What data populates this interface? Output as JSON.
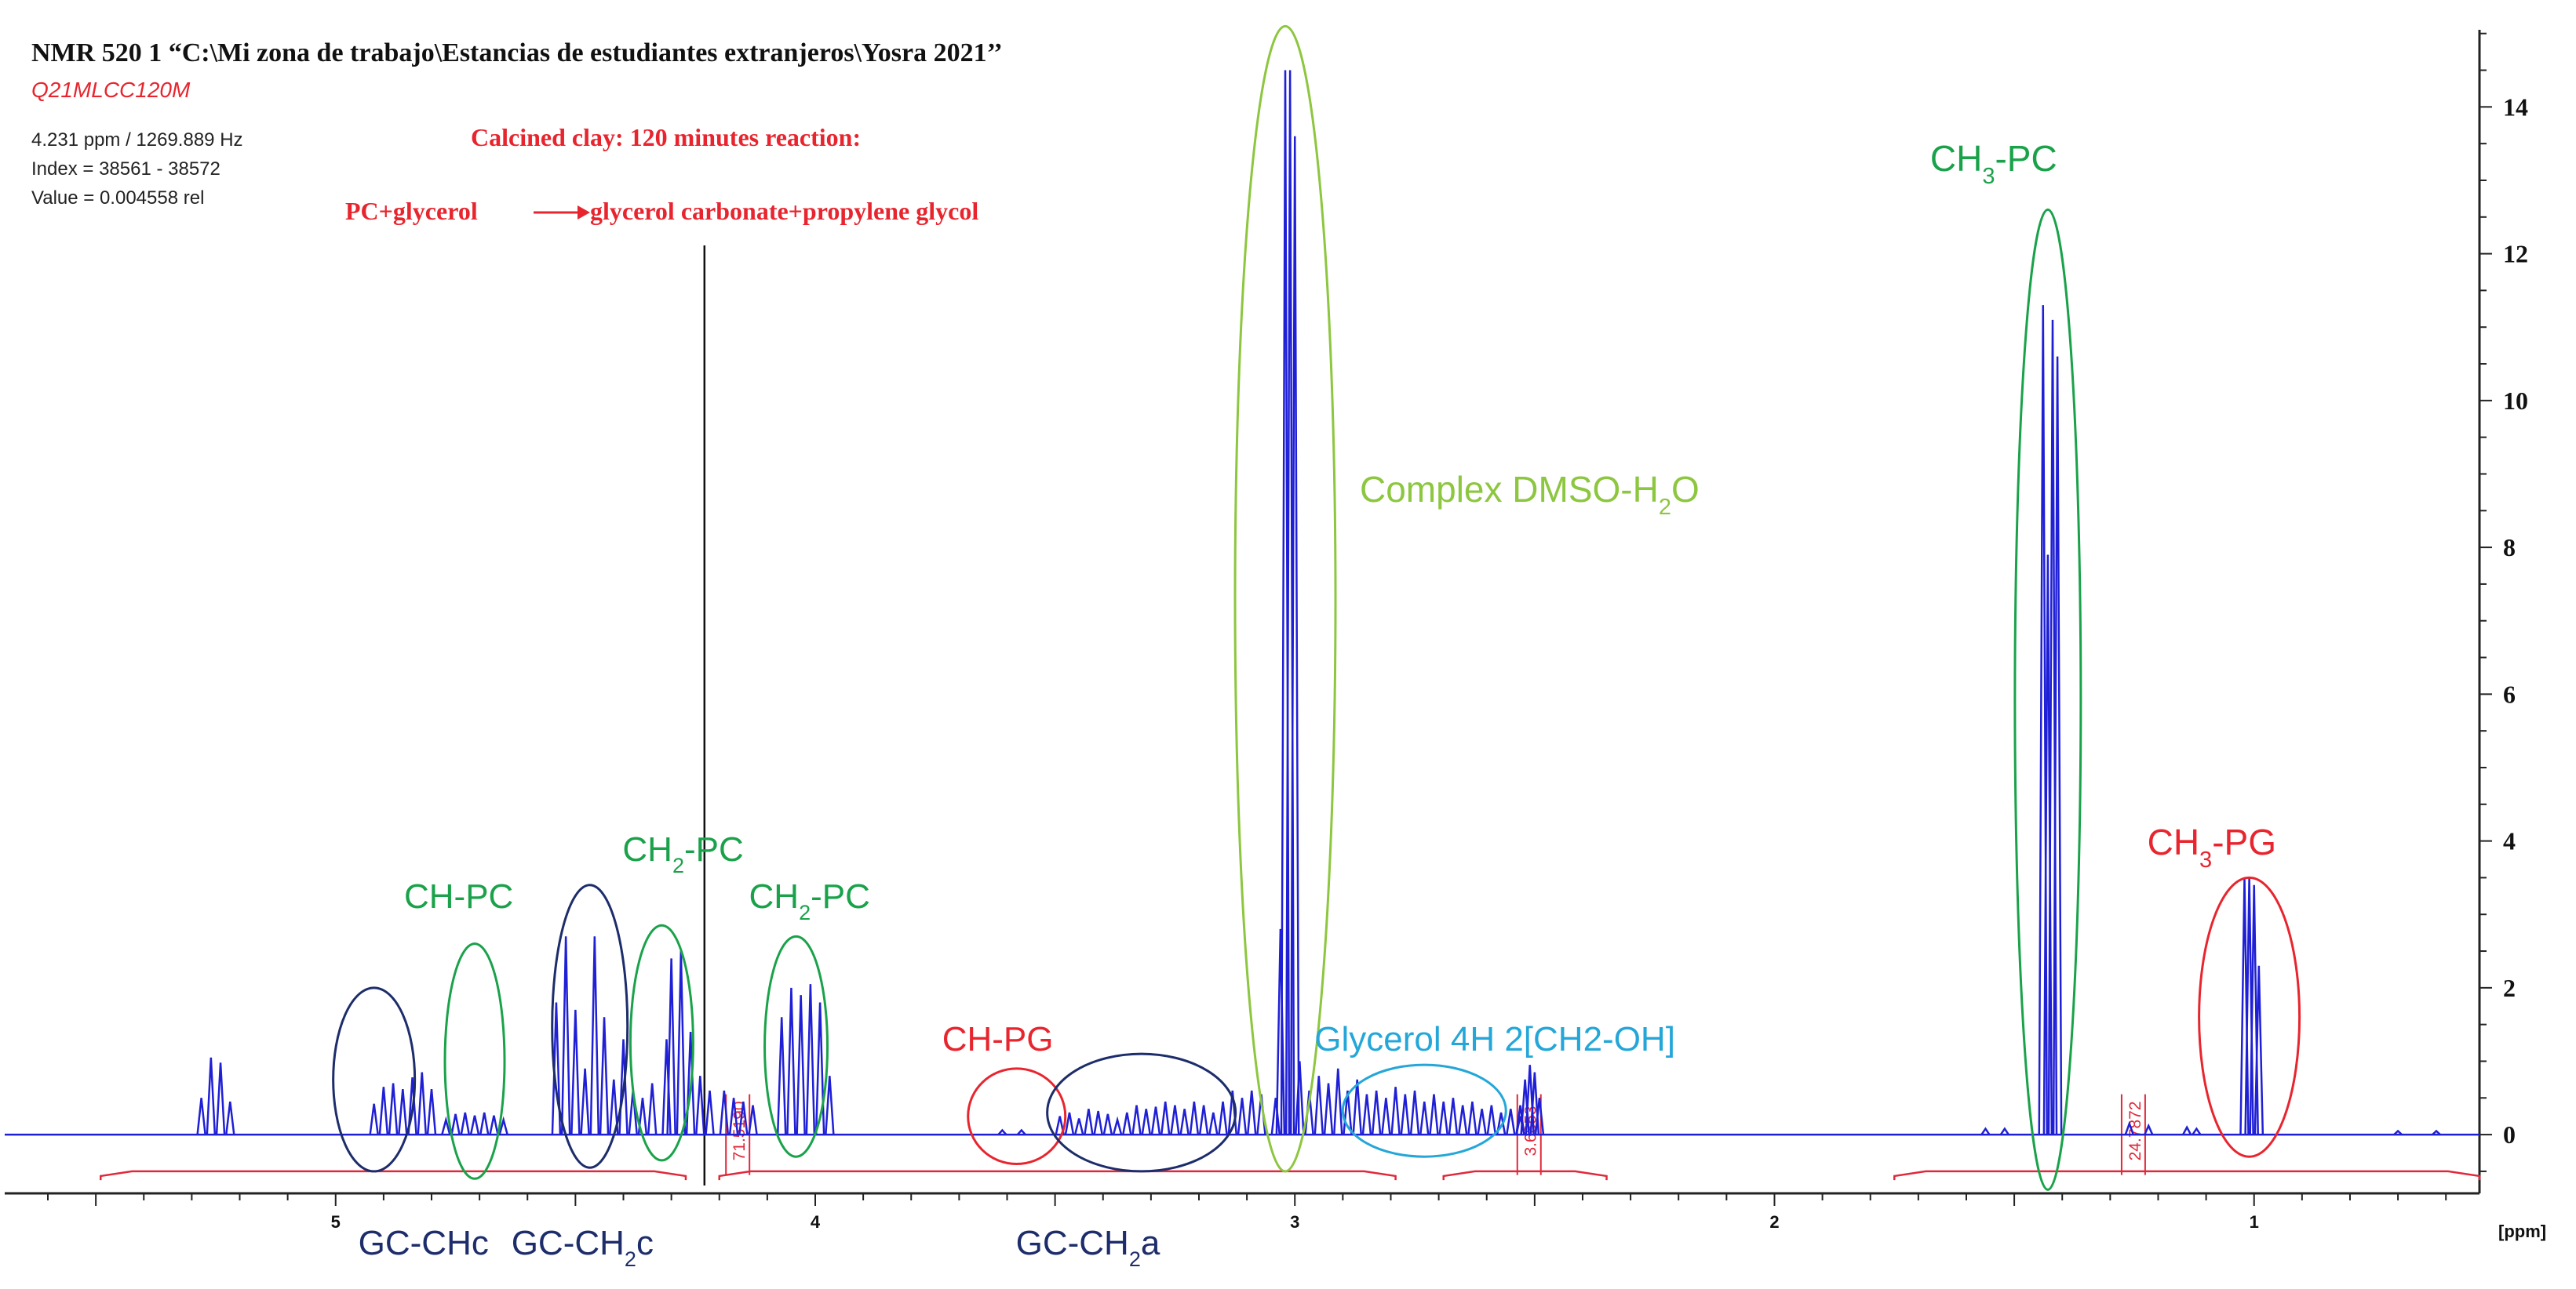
{
  "header": {
    "title": "NMR 520 1 “C:\\Mi zona de trabajo\\Estancias de estudiantes extranjeros\\Yosra 2021’’",
    "sample": "Q21MLCC120M",
    "cursor_readout": "4.231 ppm / 1269.889 Hz",
    "index_readout": "Index = 38561 - 38572",
    "value_readout": "Value = 0.004558   rel"
  },
  "reaction": {
    "condition": "Calcined clay: 120 minutes reaction:",
    "left_side": "PC+glycerol",
    "right_side": "glycerol carbonate+propylene glycol"
  },
  "colors": {
    "spectrum": "#1f1fd6",
    "integral": "#e0283a",
    "pc_green": "#1aa24a",
    "pg_red": "#e8252e",
    "gc_navy": "#1d2d6b",
    "dmso_green": "#8dc63f",
    "glycerol_blue": "#24a7d8"
  },
  "chart_data": {
    "type": "line",
    "x_axis": {
      "unit_label": "[ppm]",
      "reversed": true,
      "range": [
        5.69,
        0.53
      ],
      "major_ticks": [
        5,
        4,
        3,
        2,
        1
      ],
      "tick_labels": [
        "5",
        "4",
        "3",
        "2",
        "1"
      ]
    },
    "y_axis": {
      "position": "right",
      "range": [
        -0.8,
        15.2
      ],
      "ticks": [
        0,
        2,
        4,
        6,
        8,
        10,
        12,
        14
      ],
      "tick_labels": [
        "0",
        "2",
        "4",
        "6",
        "8",
        "10",
        "12",
        "14"
      ]
    },
    "cursor_line_ppm": 4.231,
    "series": [
      {
        "type": "spectrum",
        "peaks": [
          {
            "x": 5.28,
            "y": 0.5
          },
          {
            "x": 5.26,
            "y": 1.05
          },
          {
            "x": 5.24,
            "y": 0.98
          },
          {
            "x": 5.22,
            "y": 0.45
          },
          {
            "x": 4.92,
            "y": 0.42
          },
          {
            "x": 4.9,
            "y": 0.65
          },
          {
            "x": 4.88,
            "y": 0.7
          },
          {
            "x": 4.86,
            "y": 0.62
          },
          {
            "x": 4.84,
            "y": 0.78
          },
          {
            "x": 4.82,
            "y": 0.85
          },
          {
            "x": 4.8,
            "y": 0.62
          },
          {
            "x": 4.77,
            "y": 0.2
          },
          {
            "x": 4.75,
            "y": 0.28
          },
          {
            "x": 4.73,
            "y": 0.3
          },
          {
            "x": 4.71,
            "y": 0.26
          },
          {
            "x": 4.69,
            "y": 0.3
          },
          {
            "x": 4.67,
            "y": 0.26
          },
          {
            "x": 4.65,
            "y": 0.2
          },
          {
            "x": 4.54,
            "y": 1.8
          },
          {
            "x": 4.52,
            "y": 2.7
          },
          {
            "x": 4.5,
            "y": 1.7
          },
          {
            "x": 4.48,
            "y": 0.9
          },
          {
            "x": 4.46,
            "y": 2.7
          },
          {
            "x": 4.44,
            "y": 1.6
          },
          {
            "x": 4.42,
            "y": 0.75
          },
          {
            "x": 4.4,
            "y": 1.3
          },
          {
            "x": 4.38,
            "y": 0.6
          },
          {
            "x": 4.36,
            "y": 0.5
          },
          {
            "x": 4.34,
            "y": 0.7
          },
          {
            "x": 4.31,
            "y": 1.3
          },
          {
            "x": 4.3,
            "y": 2.4
          },
          {
            "x": 4.28,
            "y": 2.5
          },
          {
            "x": 4.26,
            "y": 1.4
          },
          {
            "x": 4.24,
            "y": 0.8
          },
          {
            "x": 4.22,
            "y": 0.6
          },
          {
            "x": 4.19,
            "y": 0.6
          },
          {
            "x": 4.17,
            "y": 0.5
          },
          {
            "x": 4.15,
            "y": 0.45
          },
          {
            "x": 4.13,
            "y": 0.4
          },
          {
            "x": 4.07,
            "y": 1.6
          },
          {
            "x": 4.05,
            "y": 2.0
          },
          {
            "x": 4.03,
            "y": 1.9
          },
          {
            "x": 4.01,
            "y": 2.05
          },
          {
            "x": 3.99,
            "y": 1.8
          },
          {
            "x": 3.97,
            "y": 0.8
          },
          {
            "x": 3.61,
            "y": 0.06
          },
          {
            "x": 3.57,
            "y": 0.06
          },
          {
            "x": 3.49,
            "y": 0.25
          },
          {
            "x": 3.47,
            "y": 0.3
          },
          {
            "x": 3.45,
            "y": 0.22
          },
          {
            "x": 3.43,
            "y": 0.35
          },
          {
            "x": 3.41,
            "y": 0.32
          },
          {
            "x": 3.39,
            "y": 0.28
          },
          {
            "x": 3.37,
            "y": 0.2
          },
          {
            "x": 3.35,
            "y": 0.3
          },
          {
            "x": 3.33,
            "y": 0.4
          },
          {
            "x": 3.31,
            "y": 0.35
          },
          {
            "x": 3.29,
            "y": 0.38
          },
          {
            "x": 3.27,
            "y": 0.45
          },
          {
            "x": 3.25,
            "y": 0.4
          },
          {
            "x": 3.23,
            "y": 0.35
          },
          {
            "x": 3.21,
            "y": 0.45
          },
          {
            "x": 3.19,
            "y": 0.4
          },
          {
            "x": 3.17,
            "y": 0.3
          },
          {
            "x": 3.15,
            "y": 0.45
          },
          {
            "x": 3.13,
            "y": 0.6
          },
          {
            "x": 3.11,
            "y": 0.5
          },
          {
            "x": 3.09,
            "y": 0.6
          },
          {
            "x": 3.07,
            "y": 0.55
          },
          {
            "x": 3.04,
            "y": 0.5
          },
          {
            "x": 3.03,
            "y": 2.8
          },
          {
            "x": 3.02,
            "y": 14.5
          },
          {
            "x": 3.01,
            "y": 14.5
          },
          {
            "x": 3.0,
            "y": 13.6
          },
          {
            "x": 2.99,
            "y": 1.0
          },
          {
            "x": 2.97,
            "y": 0.6
          },
          {
            "x": 2.95,
            "y": 0.8
          },
          {
            "x": 2.93,
            "y": 0.7
          },
          {
            "x": 2.91,
            "y": 0.9
          },
          {
            "x": 2.89,
            "y": 0.6
          },
          {
            "x": 2.87,
            "y": 0.75
          },
          {
            "x": 2.85,
            "y": 0.55
          },
          {
            "x": 2.83,
            "y": 0.6
          },
          {
            "x": 2.81,
            "y": 0.5
          },
          {
            "x": 2.79,
            "y": 0.65
          },
          {
            "x": 2.77,
            "y": 0.55
          },
          {
            "x": 2.75,
            "y": 0.6
          },
          {
            "x": 2.73,
            "y": 0.45
          },
          {
            "x": 2.71,
            "y": 0.55
          },
          {
            "x": 2.69,
            "y": 0.45
          },
          {
            "x": 2.67,
            "y": 0.5
          },
          {
            "x": 2.65,
            "y": 0.4
          },
          {
            "x": 2.63,
            "y": 0.45
          },
          {
            "x": 2.61,
            "y": 0.35
          },
          {
            "x": 2.59,
            "y": 0.4
          },
          {
            "x": 2.57,
            "y": 0.3
          },
          {
            "x": 2.55,
            "y": 0.35
          },
          {
            "x": 2.53,
            "y": 0.25
          },
          {
            "x": 2.53,
            "y": 0.4
          },
          {
            "x": 2.52,
            "y": 0.75
          },
          {
            "x": 2.51,
            "y": 0.95
          },
          {
            "x": 2.5,
            "y": 0.85
          },
          {
            "x": 2.49,
            "y": 0.5
          },
          {
            "x": 1.56,
            "y": 0.08
          },
          {
            "x": 1.52,
            "y": 0.08
          },
          {
            "x": 1.44,
            "y": 11.3
          },
          {
            "x": 1.43,
            "y": 7.9
          },
          {
            "x": 1.42,
            "y": 11.1
          },
          {
            "x": 1.41,
            "y": 10.6
          },
          {
            "x": 1.26,
            "y": 0.15
          },
          {
            "x": 1.22,
            "y": 0.12
          },
          {
            "x": 1.14,
            "y": 0.1
          },
          {
            "x": 1.12,
            "y": 0.08
          },
          {
            "x": 1.02,
            "y": 3.5
          },
          {
            "x": 1.01,
            "y": 3.5
          },
          {
            "x": 1.0,
            "y": 3.4
          },
          {
            "x": 0.99,
            "y": 2.3
          },
          {
            "x": 0.7,
            "y": 0.05
          },
          {
            "x": 0.62,
            "y": 0.05
          }
        ]
      },
      {
        "type": "integral_regions",
        "regions": [
          {
            "from": 5.49,
            "to": 4.27
          },
          {
            "from": 4.2,
            "to": 2.79
          },
          {
            "from": 2.69,
            "to": 2.35
          },
          {
            "from": 1.75,
            "to": 0.53
          }
        ]
      }
    ],
    "integral_labels": [
      {
        "ppm": 4.16,
        "text": "71.5190"
      },
      {
        "ppm": 2.51,
        "text": "3.6853"
      },
      {
        "ppm": 1.25,
        "text": "24.7872"
      }
    ],
    "annotations": [
      {
        "id": "gc-chc",
        "ppm": 4.92,
        "y_lo": -0.5,
        "y_hi": 2.0,
        "color_key": "gc_navy",
        "label": {
          "main": "GC-CHc",
          "sub": ""
        }
      },
      {
        "id": "ch-pc",
        "ppm": 4.71,
        "y_lo": -0.6,
        "y_hi": 2.6,
        "color_key": "pc_green",
        "label": {
          "main": "CH-PC",
          "sub": ""
        }
      },
      {
        "id": "gc-ch2c",
        "ppm": 4.47,
        "y_lo": -0.45,
        "y_hi": 3.4,
        "color_key": "gc_navy",
        "label": {
          "main": "GC-CH",
          "sub": "2",
          "suffix": "c"
        }
      },
      {
        "id": "ch2-pc-a",
        "ppm": 4.32,
        "y_lo": -0.35,
        "y_hi": 2.85,
        "color_key": "pc_green",
        "label": {
          "main": "CH",
          "sub": "2",
          "suffix": "-PC"
        }
      },
      {
        "id": "ch2-pc-b",
        "ppm": 4.04,
        "y_lo": -0.3,
        "y_hi": 2.7,
        "color_key": "pc_green",
        "label": {
          "main": "CH",
          "sub": "2",
          "suffix": "-PC"
        }
      },
      {
        "id": "ch-pg",
        "ppm": 3.58,
        "y_lo": -0.4,
        "y_hi": 0.9,
        "color_key": "pg_red",
        "label": {
          "main": "CH-PG",
          "sub": ""
        }
      },
      {
        "id": "gc-ch2a",
        "ppm": 3.32,
        "y_lo": -0.5,
        "y_hi": 1.1,
        "color_key": "gc_navy",
        "label": {
          "main": "GC-CH",
          "sub": "2",
          "suffix": "a"
        }
      },
      {
        "id": "dmso-h2o",
        "ppm": 3.02,
        "y_lo": -0.5,
        "y_hi": 15.1,
        "color_key": "dmso_green",
        "label": {
          "main": "Complex DMSO-H",
          "sub": "2",
          "suffix": "O"
        }
      },
      {
        "id": "glycerol",
        "ppm": 2.73,
        "y_lo": -0.3,
        "y_hi": 0.95,
        "color_key": "glycerol_blue",
        "label": {
          "main": "Glycerol 4H 2[CH2-OH]",
          "sub": ""
        }
      },
      {
        "id": "ch3-pc",
        "ppm": 1.43,
        "y_lo": -0.75,
        "y_hi": 12.6,
        "color_key": "pc_green",
        "label": {
          "main": "CH",
          "sub": "3",
          "suffix": "-PC"
        }
      },
      {
        "id": "ch3-pg",
        "ppm": 1.01,
        "y_lo": -0.3,
        "y_hi": 3.5,
        "color_key": "pg_red",
        "label": {
          "main": "CH",
          "sub": "3",
          "suffix": "-PG"
        }
      }
    ]
  }
}
